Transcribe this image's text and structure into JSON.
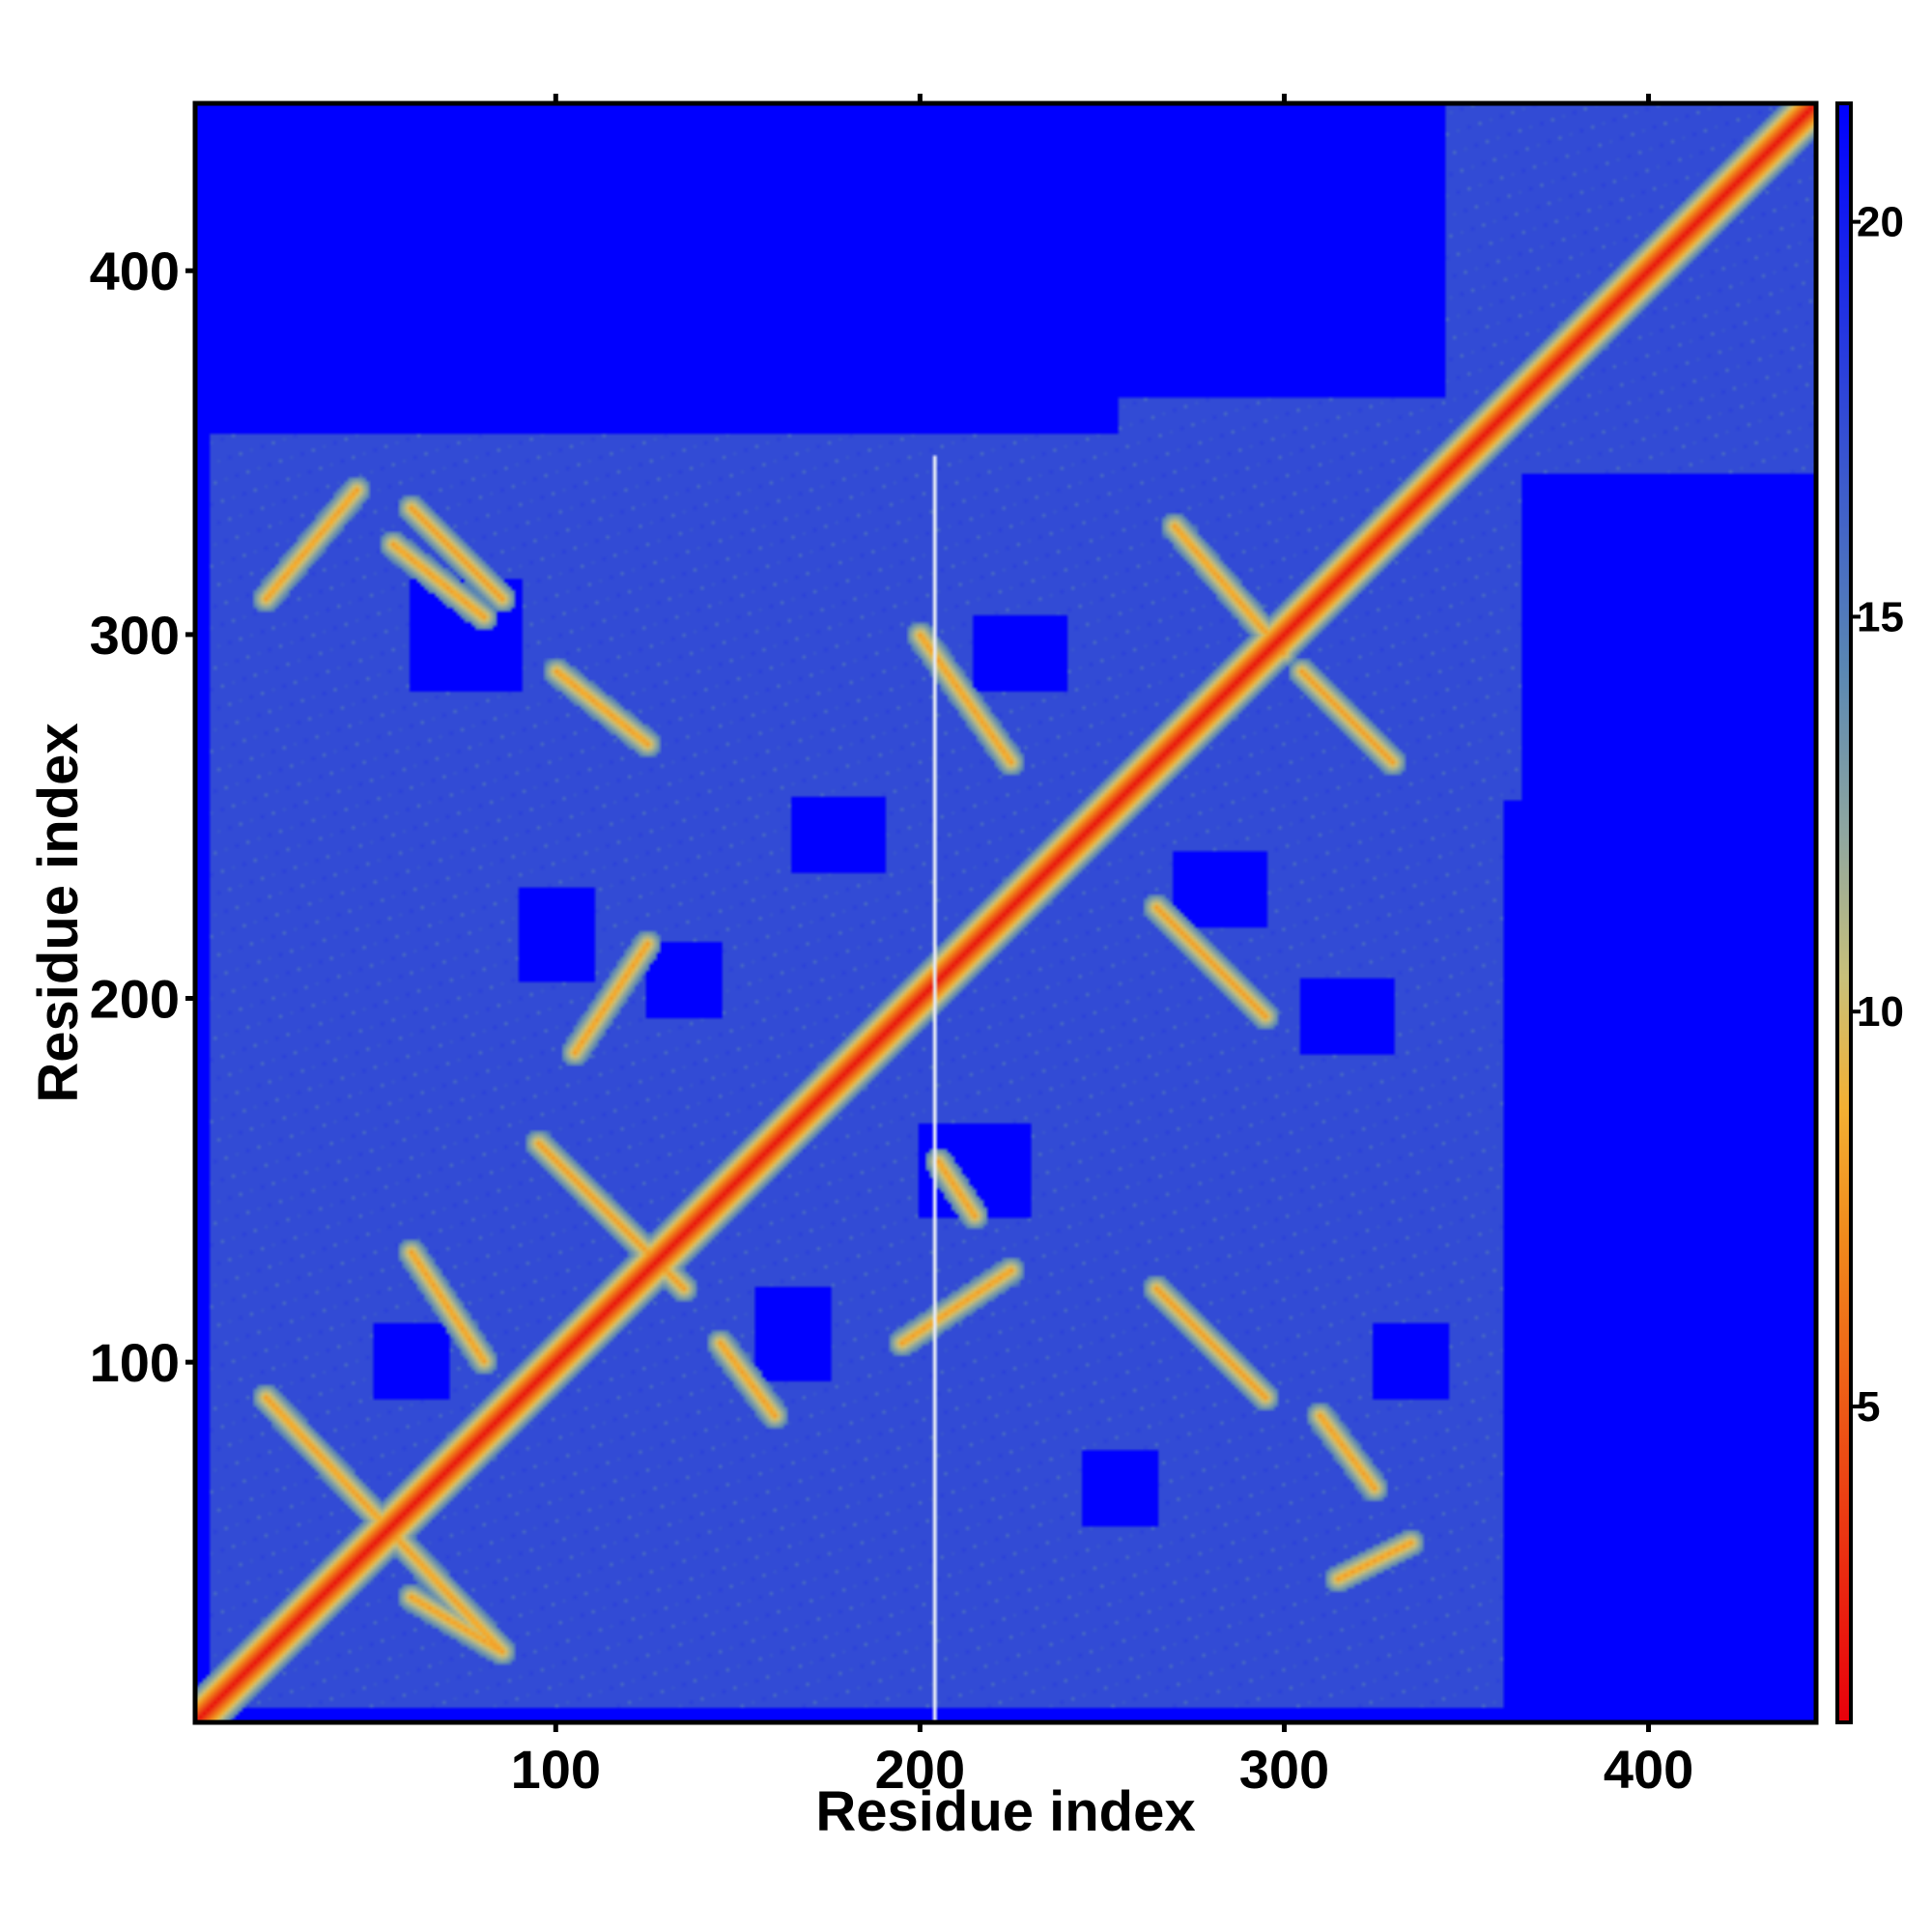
{
  "chart_data": {
    "type": "heatmap",
    "title": "",
    "xlabel": "Residue index",
    "ylabel": "Residue index",
    "xlim": [
      1,
      446
    ],
    "ylim": [
      1,
      446
    ],
    "x_ticks": [
      100,
      200,
      300,
      400
    ],
    "y_ticks": [
      100,
      200,
      300,
      400
    ],
    "colorbar": {
      "range": [
        1,
        21.5
      ],
      "ticks": [
        5,
        10,
        15,
        20
      ],
      "colors": [
        "#e8000b",
        "#f08a1c",
        "#f3b033",
        "#c8c07a",
        "#8ea6a0",
        "#5a87b3",
        "#0000ff"
      ],
      "stops": [
        0.0,
        0.3,
        0.38,
        0.46,
        0.55,
        0.65,
        1.0
      ],
      "saturate_value": 21.5
    },
    "colors": {
      "far": "#0000ff",
      "mid": "#5a87b3",
      "close": "#e8000b",
      "moderate": "#f3b033"
    },
    "description_of_values": "Pairwise residue distance matrix; red = small distances along the diagonal and off-diagonal beta-strand pairings, steel-blue = intermediate (~15–20), saturated blue = large distances (>21).",
    "blocks": [
      {
        "x": [
          5,
          360
        ],
        "y": [
          5,
          355
        ],
        "value": 17.5
      },
      {
        "x": [
          255,
          365
        ],
        "y": [
          255,
          365
        ],
        "value": 17.5
      },
      {
        "x": [
          345,
          446
        ],
        "y": [
          345,
          446
        ],
        "value": 21.5
      }
    ],
    "holes": [
      {
        "x": [
          90,
          110
        ],
        "y": [
          205,
          230
        ]
      },
      {
        "x": [
          125,
          145
        ],
        "y": [
          195,
          215
        ]
      },
      {
        "x": [
          165,
          190
        ],
        "y": [
          235,
          255
        ]
      },
      {
        "x": [
          215,
          240
        ],
        "y": [
          285,
          305
        ]
      },
      {
        "x": [
          200,
          230
        ],
        "y": [
          140,
          165
        ]
      },
      {
        "x": [
          155,
          175
        ],
        "y": [
          95,
          120
        ]
      },
      {
        "x": [
          270,
          295
        ],
        "y": [
          220,
          240
        ]
      },
      {
        "x": [
          305,
          330
        ],
        "y": [
          185,
          205
        ]
      },
      {
        "x": [
          325,
          345
        ],
        "y": [
          90,
          110
        ]
      },
      {
        "x": [
          245,
          265
        ],
        "y": [
          55,
          75
        ]
      },
      {
        "x": [
          50,
          70
        ],
        "y": [
          90,
          110
        ]
      },
      {
        "x": [
          60,
          90
        ],
        "y": [
          285,
          315
        ]
      }
    ],
    "stripes": [
      {
        "from": [
          20,
          90
        ],
        "to": [
          85,
          20
        ],
        "value": 8
      },
      {
        "from": [
          55,
          325
        ],
        "to": [
          80,
          305
        ],
        "value": 8
      },
      {
        "from": [
          45,
          340
        ],
        "to": [
          20,
          310
        ],
        "value": 8
      },
      {
        "from": [
          60,
          335
        ],
        "to": [
          85,
          310
        ],
        "value": 8
      },
      {
        "from": [
          100,
          290
        ],
        "to": [
          125,
          270
        ],
        "value": 8
      },
      {
        "from": [
          95,
          160
        ],
        "to": [
          135,
          120
        ],
        "value": 8
      },
      {
        "from": [
          105,
          185
        ],
        "to": [
          125,
          215
        ],
        "value": 8
      },
      {
        "from": [
          145,
          105
        ],
        "to": [
          160,
          85
        ],
        "value": 8
      },
      {
        "from": [
          200,
          300
        ],
        "to": [
          225,
          265
        ],
        "value": 8
      },
      {
        "from": [
          195,
          105
        ],
        "to": [
          225,
          125
        ],
        "value": 8
      },
      {
        "from": [
          205,
          155
        ],
        "to": [
          215,
          140
        ],
        "value": 8
      },
      {
        "from": [
          270,
          330
        ],
        "to": [
          300,
          295
        ],
        "value": 8
      },
      {
        "from": [
          305,
          290
        ],
        "to": [
          330,
          265
        ],
        "value": 8
      },
      {
        "from": [
          265,
          225
        ],
        "to": [
          295,
          195
        ],
        "value": 8
      },
      {
        "from": [
          265,
          120
        ],
        "to": [
          295,
          90
        ],
        "value": 8
      },
      {
        "from": [
          310,
          85
        ],
        "to": [
          325,
          65
        ],
        "value": 8
      },
      {
        "from": [
          315,
          40
        ],
        "to": [
          335,
          50
        ],
        "value": 8
      },
      {
        "from": [
          60,
          130
        ],
        "to": [
          80,
          100
        ],
        "value": 8
      },
      {
        "from": [
          60,
          35
        ],
        "to": [
          85,
          20
        ],
        "value": 8
      }
    ],
    "artifact_column_x": 204
  }
}
